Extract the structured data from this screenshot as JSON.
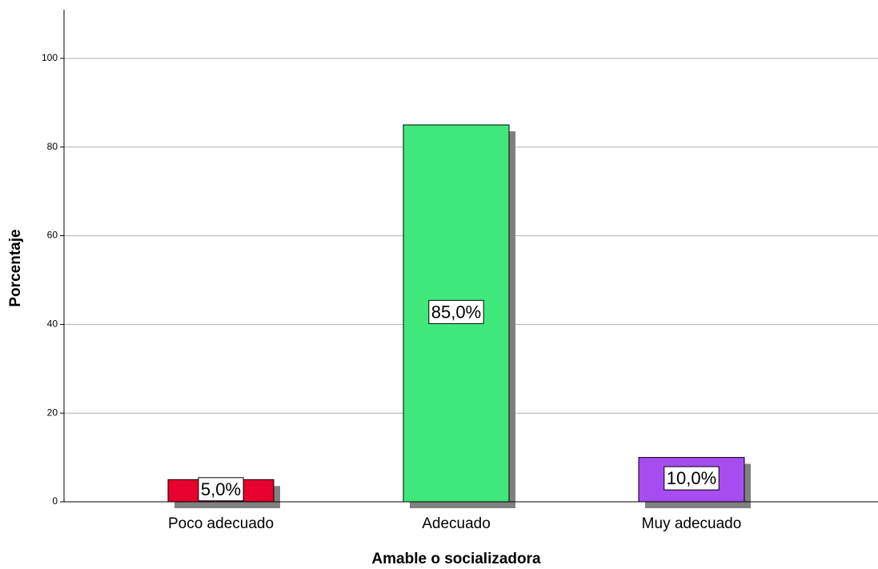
{
  "chart_data": {
    "type": "bar",
    "x_label": "Amable o socializadora",
    "y_label": "Porcentaje",
    "categories": [
      "Poco adecuado",
      "Adecuado",
      "Muy adecuado"
    ],
    "values": [
      5,
      85,
      10
    ],
    "value_labels": [
      "5,0%",
      "85,0%",
      "10,0%"
    ],
    "colors": [
      "#e8002f",
      "#40e87c",
      "#a64cf0"
    ],
    "ylim": [
      0,
      111
    ],
    "yticks": [
      0,
      20,
      40,
      60,
      80,
      100
    ],
    "grid": true
  }
}
